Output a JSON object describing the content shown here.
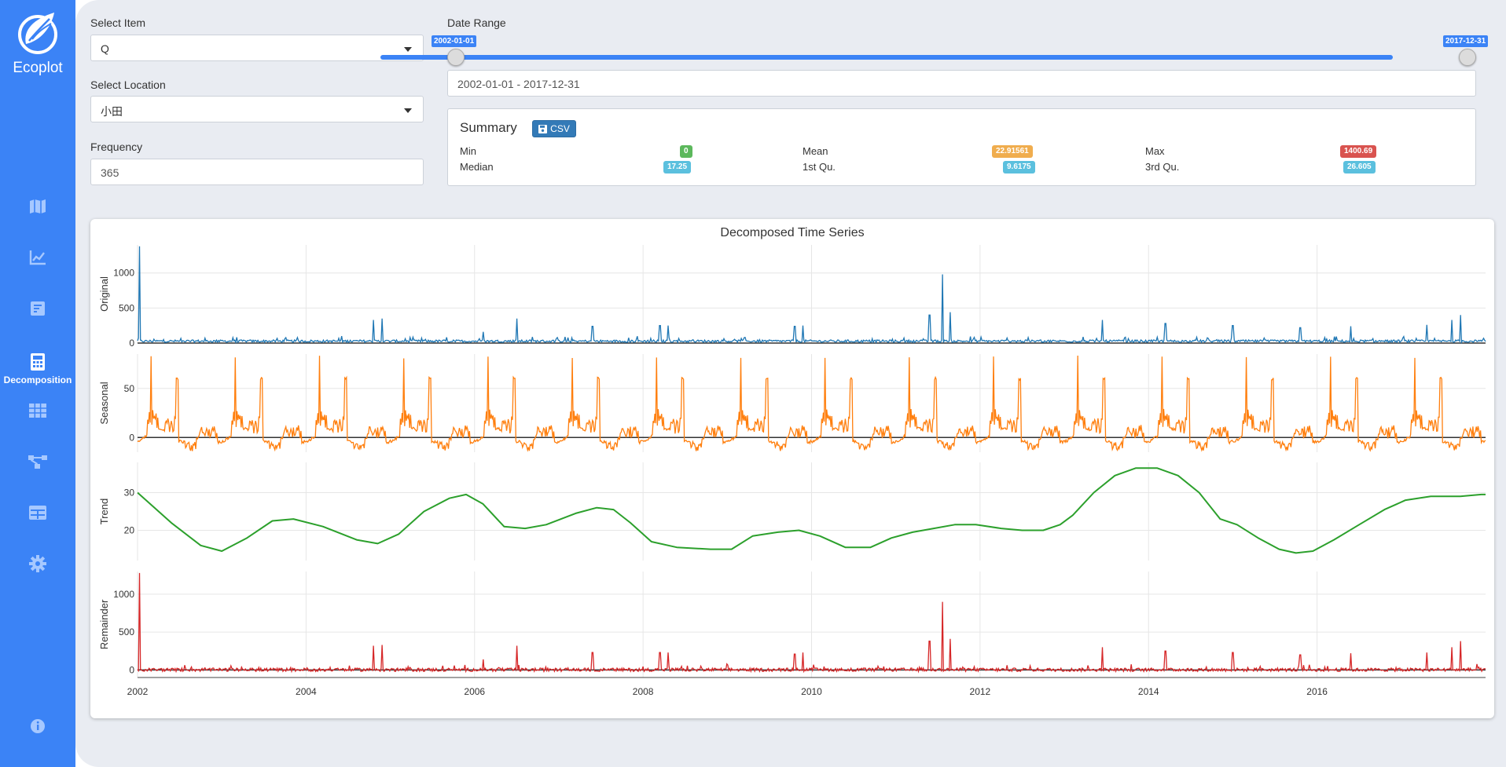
{
  "app": {
    "name": "Ecoplot"
  },
  "sidebar": {
    "items": [
      {
        "icon": "map-icon",
        "label": ""
      },
      {
        "icon": "line-chart-icon",
        "label": ""
      },
      {
        "icon": "report-icon",
        "label": ""
      },
      {
        "icon": "calculator-icon",
        "label": "Decomposition",
        "active": true
      },
      {
        "icon": "grid-icon",
        "label": ""
      },
      {
        "icon": "network-icon",
        "label": ""
      },
      {
        "icon": "table-icon",
        "label": ""
      },
      {
        "icon": "gear-icon",
        "label": ""
      },
      {
        "icon": "info-icon",
        "label": ""
      }
    ]
  },
  "controls": {
    "item_label": "Select Item",
    "item_value": "Q",
    "location_label": "Select Location",
    "location_value": "小田",
    "frequency_label": "Frequency",
    "frequency_value": "365",
    "date_range_label": "Date Range",
    "date_start": "2002-01-01",
    "date_end": "2017-12-31",
    "date_range_value": "2002-01-01 - 2017-12-31"
  },
  "summary": {
    "title": "Summary",
    "csv_label": "CSV",
    "stats": {
      "min_label": "Min",
      "min": "0",
      "mean_label": "Mean",
      "mean": "22.91561",
      "max_label": "Max",
      "max": "1400.69",
      "median_label": "Median",
      "median": "17.25",
      "q1_label": "1st Qu.",
      "q1": "9.6175",
      "q3_label": "3rd Qu.",
      "q3": "26.605"
    }
  },
  "chart_data": {
    "type": "line",
    "title": "Decomposed Time Series",
    "x_ticks": [
      "2002",
      "2004",
      "2006",
      "2008",
      "2010",
      "2012",
      "2014",
      "2016"
    ],
    "x_range": [
      2002,
      2018
    ],
    "panels": [
      {
        "ylabel": "Original",
        "yticks": [
          "0",
          "500",
          "1000"
        ],
        "ylim": [
          0,
          1400
        ],
        "color": "#1f77b4",
        "spikes": [
          [
            2002.02,
            1380
          ],
          [
            2004.8,
            330
          ],
          [
            2004.9,
            350
          ],
          [
            2006.1,
            160
          ],
          [
            2006.5,
            350
          ],
          [
            2007.4,
            240
          ],
          [
            2008.2,
            250
          ],
          [
            2008.3,
            250
          ],
          [
            2009.8,
            240
          ],
          [
            2009.9,
            250
          ],
          [
            2011.4,
            400
          ],
          [
            2011.55,
            980
          ],
          [
            2011.65,
            440
          ],
          [
            2013.45,
            330
          ],
          [
            2014.2,
            280
          ],
          [
            2015.0,
            250
          ],
          [
            2015.8,
            220
          ],
          [
            2016.4,
            240
          ],
          [
            2017.3,
            260
          ],
          [
            2017.6,
            330
          ],
          [
            2017.7,
            400
          ]
        ]
      },
      {
        "ylabel": "Seasonal",
        "yticks": [
          "0",
          "50"
        ],
        "ylim": [
          -15,
          85
        ],
        "color": "#ff7f0e"
      },
      {
        "ylabel": "Trend",
        "yticks": [
          "20",
          "30"
        ],
        "ylim": [
          12,
          38
        ],
        "color": "#2ca02c",
        "points": [
          [
            2002.0,
            30
          ],
          [
            2002.4,
            22
          ],
          [
            2002.75,
            16
          ],
          [
            2003.0,
            14.5
          ],
          [
            2003.3,
            18
          ],
          [
            2003.6,
            22.5
          ],
          [
            2003.85,
            23
          ],
          [
            2004.2,
            21
          ],
          [
            2004.6,
            17.5
          ],
          [
            2004.85,
            16.5
          ],
          [
            2005.1,
            19
          ],
          [
            2005.4,
            25
          ],
          [
            2005.7,
            28.5
          ],
          [
            2005.9,
            29.5
          ],
          [
            2006.1,
            27
          ],
          [
            2006.35,
            21
          ],
          [
            2006.6,
            20.5
          ],
          [
            2006.85,
            21.5
          ],
          [
            2007.2,
            24.5
          ],
          [
            2007.45,
            26
          ],
          [
            2007.65,
            25.5
          ],
          [
            2007.85,
            22
          ],
          [
            2008.1,
            17
          ],
          [
            2008.4,
            15.5
          ],
          [
            2008.8,
            15
          ],
          [
            2009.05,
            15
          ],
          [
            2009.3,
            18.5
          ],
          [
            2009.6,
            19.5
          ],
          [
            2009.85,
            20
          ],
          [
            2010.1,
            18.5
          ],
          [
            2010.4,
            15.5
          ],
          [
            2010.7,
            15.5
          ],
          [
            2010.95,
            18
          ],
          [
            2011.2,
            19.5
          ],
          [
            2011.45,
            20.5
          ],
          [
            2011.7,
            21.5
          ],
          [
            2011.95,
            21.5
          ],
          [
            2012.25,
            20.5
          ],
          [
            2012.5,
            20
          ],
          [
            2012.75,
            20
          ],
          [
            2012.95,
            21.5
          ],
          [
            2013.1,
            24
          ],
          [
            2013.35,
            30
          ],
          [
            2013.6,
            34.5
          ],
          [
            2013.85,
            36.5
          ],
          [
            2014.1,
            36.5
          ],
          [
            2014.35,
            34.5
          ],
          [
            2014.6,
            30
          ],
          [
            2014.85,
            23
          ],
          [
            2015.05,
            21.5
          ],
          [
            2015.3,
            18
          ],
          [
            2015.55,
            15
          ],
          [
            2015.75,
            14
          ],
          [
            2015.95,
            14.5
          ],
          [
            2016.2,
            17.5
          ],
          [
            2016.5,
            21.5
          ],
          [
            2016.8,
            25.5
          ],
          [
            2017.05,
            28
          ],
          [
            2017.35,
            29
          ],
          [
            2017.7,
            29
          ],
          [
            2017.95,
            29.5
          ],
          [
            2018.0,
            29.5
          ]
        ]
      },
      {
        "ylabel": "Remainder",
        "yticks": [
          "0",
          "500",
          "1000"
        ],
        "ylim": [
          -100,
          1300
        ],
        "color": "#d62728",
        "spikes": [
          [
            2002.02,
            1280
          ],
          [
            2004.8,
            320
          ],
          [
            2004.9,
            330
          ],
          [
            2006.1,
            140
          ],
          [
            2006.5,
            320
          ],
          [
            2007.4,
            230
          ],
          [
            2008.2,
            230
          ],
          [
            2008.3,
            230
          ],
          [
            2009.8,
            210
          ],
          [
            2009.9,
            230
          ],
          [
            2011.4,
            380
          ],
          [
            2011.55,
            900
          ],
          [
            2011.65,
            410
          ],
          [
            2013.45,
            300
          ],
          [
            2014.2,
            250
          ],
          [
            2015.0,
            230
          ],
          [
            2015.8,
            200
          ],
          [
            2016.4,
            220
          ],
          [
            2017.3,
            230
          ],
          [
            2017.6,
            300
          ],
          [
            2017.7,
            380
          ]
        ]
      }
    ]
  }
}
